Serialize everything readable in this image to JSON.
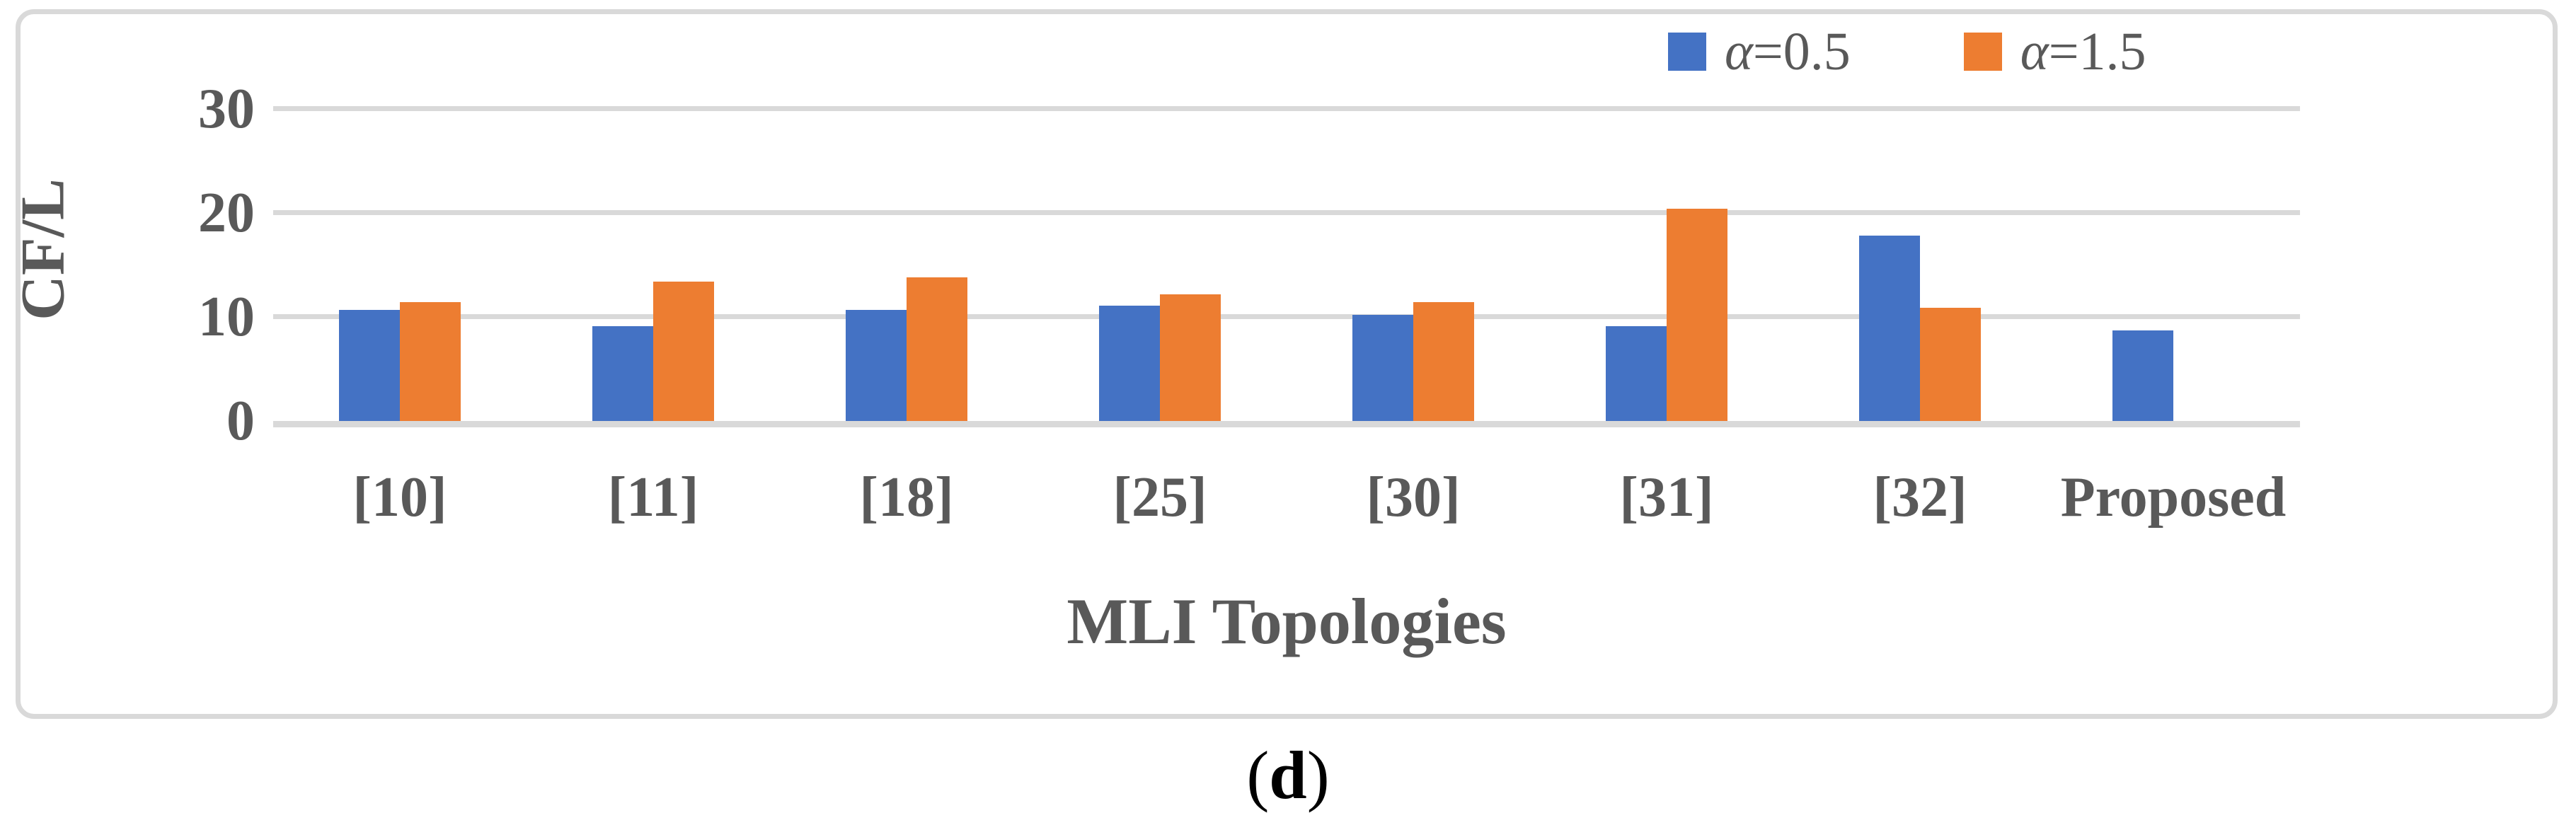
{
  "figure": {
    "caption": {
      "open": "(",
      "letter": "d",
      "close": ")"
    }
  },
  "legend": {
    "items": [
      {
        "label": "α=0.5",
        "symbol": "α",
        "rest": "=0.5",
        "color": "#4472C4",
        "swatch": "blue-square"
      },
      {
        "label": "α=1.5",
        "symbol": "α",
        "rest": "=1.5",
        "color": "#ED7D31",
        "swatch": "orange-square"
      }
    ]
  },
  "axes": {
    "y_title": "CF/L",
    "x_title": "MLI Topologies"
  },
  "chart_data": {
    "type": "bar",
    "title": "",
    "xlabel": "MLI Topologies",
    "ylabel": "CF/L",
    "categories": [
      "[10]",
      "[11]",
      "[18]",
      "[25]",
      "[30]",
      "[31]",
      "[32]",
      "Proposed"
    ],
    "series": [
      {
        "name": "α=0.5",
        "color": "#4472C4",
        "values": [
          10.7,
          9.1,
          10.7,
          11.1,
          10.2,
          9.1,
          17.8,
          8.7
        ]
      },
      {
        "name": "α=1.5",
        "color": "#ED7D31",
        "values": [
          11.4,
          13.4,
          13.8,
          12.2,
          11.4,
          20.4,
          10.9,
          null
        ]
      }
    ],
    "ylim": [
      0,
      33
    ],
    "yticks": [
      0,
      10,
      20,
      30
    ],
    "grid": "horizontal",
    "legend_position": "top-right"
  },
  "colors": {
    "bar_blue": "#4472C4",
    "bar_orange": "#ED7D31",
    "gridline": "#D9D9D9",
    "border": "#D9D9D9",
    "axis_text": "#595959",
    "caption_text": "#000000",
    "background": "#FFFFFF"
  }
}
